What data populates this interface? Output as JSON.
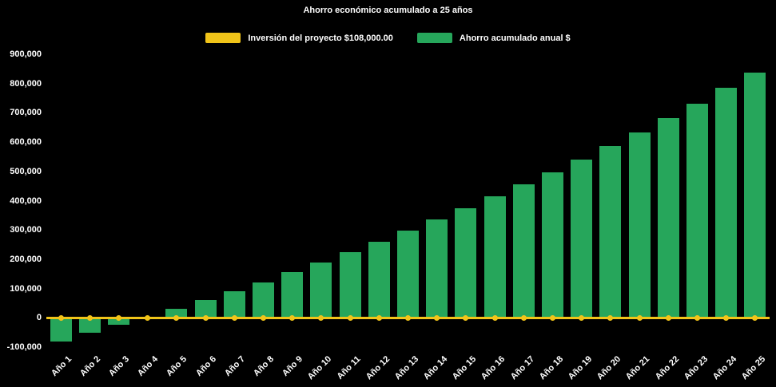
{
  "chart_data": {
    "type": "bar",
    "title": "Ahorro económico acumulado a 25 años",
    "background": "#000000",
    "text_color": "#ffffff",
    "legend_position": "top",
    "grid": false,
    "categories": [
      "Año 1",
      "Año 2",
      "Año 3",
      "Año 4",
      "Año 5",
      "Año 6",
      "Año 7",
      "Año 8",
      "Año 9",
      "Año 10",
      "Año 11",
      "Año 12",
      "Año 13",
      "Año 14",
      "Año 15",
      "Año 16",
      "Año 17",
      "Año 18",
      "Año 19",
      "Año 20",
      "Año 21",
      "Año 22",
      "Año 23",
      "Año 24",
      "Año 25"
    ],
    "ylim": [
      -100000,
      900000
    ],
    "ytick_interval": 100000,
    "ytick_labels": [
      "-100,000",
      "0",
      "100,000",
      "200,000",
      "300,000",
      "400,000",
      "500,000",
      "600,000",
      "700,000",
      "800,000",
      "900,000"
    ],
    "series": [
      {
        "name": "Inversión del proyecto $108,000.00",
        "type": "line",
        "color": "#f0c419",
        "marker": "circle",
        "constant_value": 0
      },
      {
        "name": "Ahorro acumulado anual $",
        "type": "bar",
        "color": "#26a65b",
        "values": [
          -80000,
          -52000,
          -24000,
          4000,
          32000,
          60000,
          90000,
          122000,
          156000,
          190000,
          225000,
          260000,
          297000,
          335000,
          374000,
          414000,
          455000,
          497000,
          540000,
          587000,
          634000,
          682000,
          731000,
          785000,
          838000
        ]
      }
    ]
  }
}
